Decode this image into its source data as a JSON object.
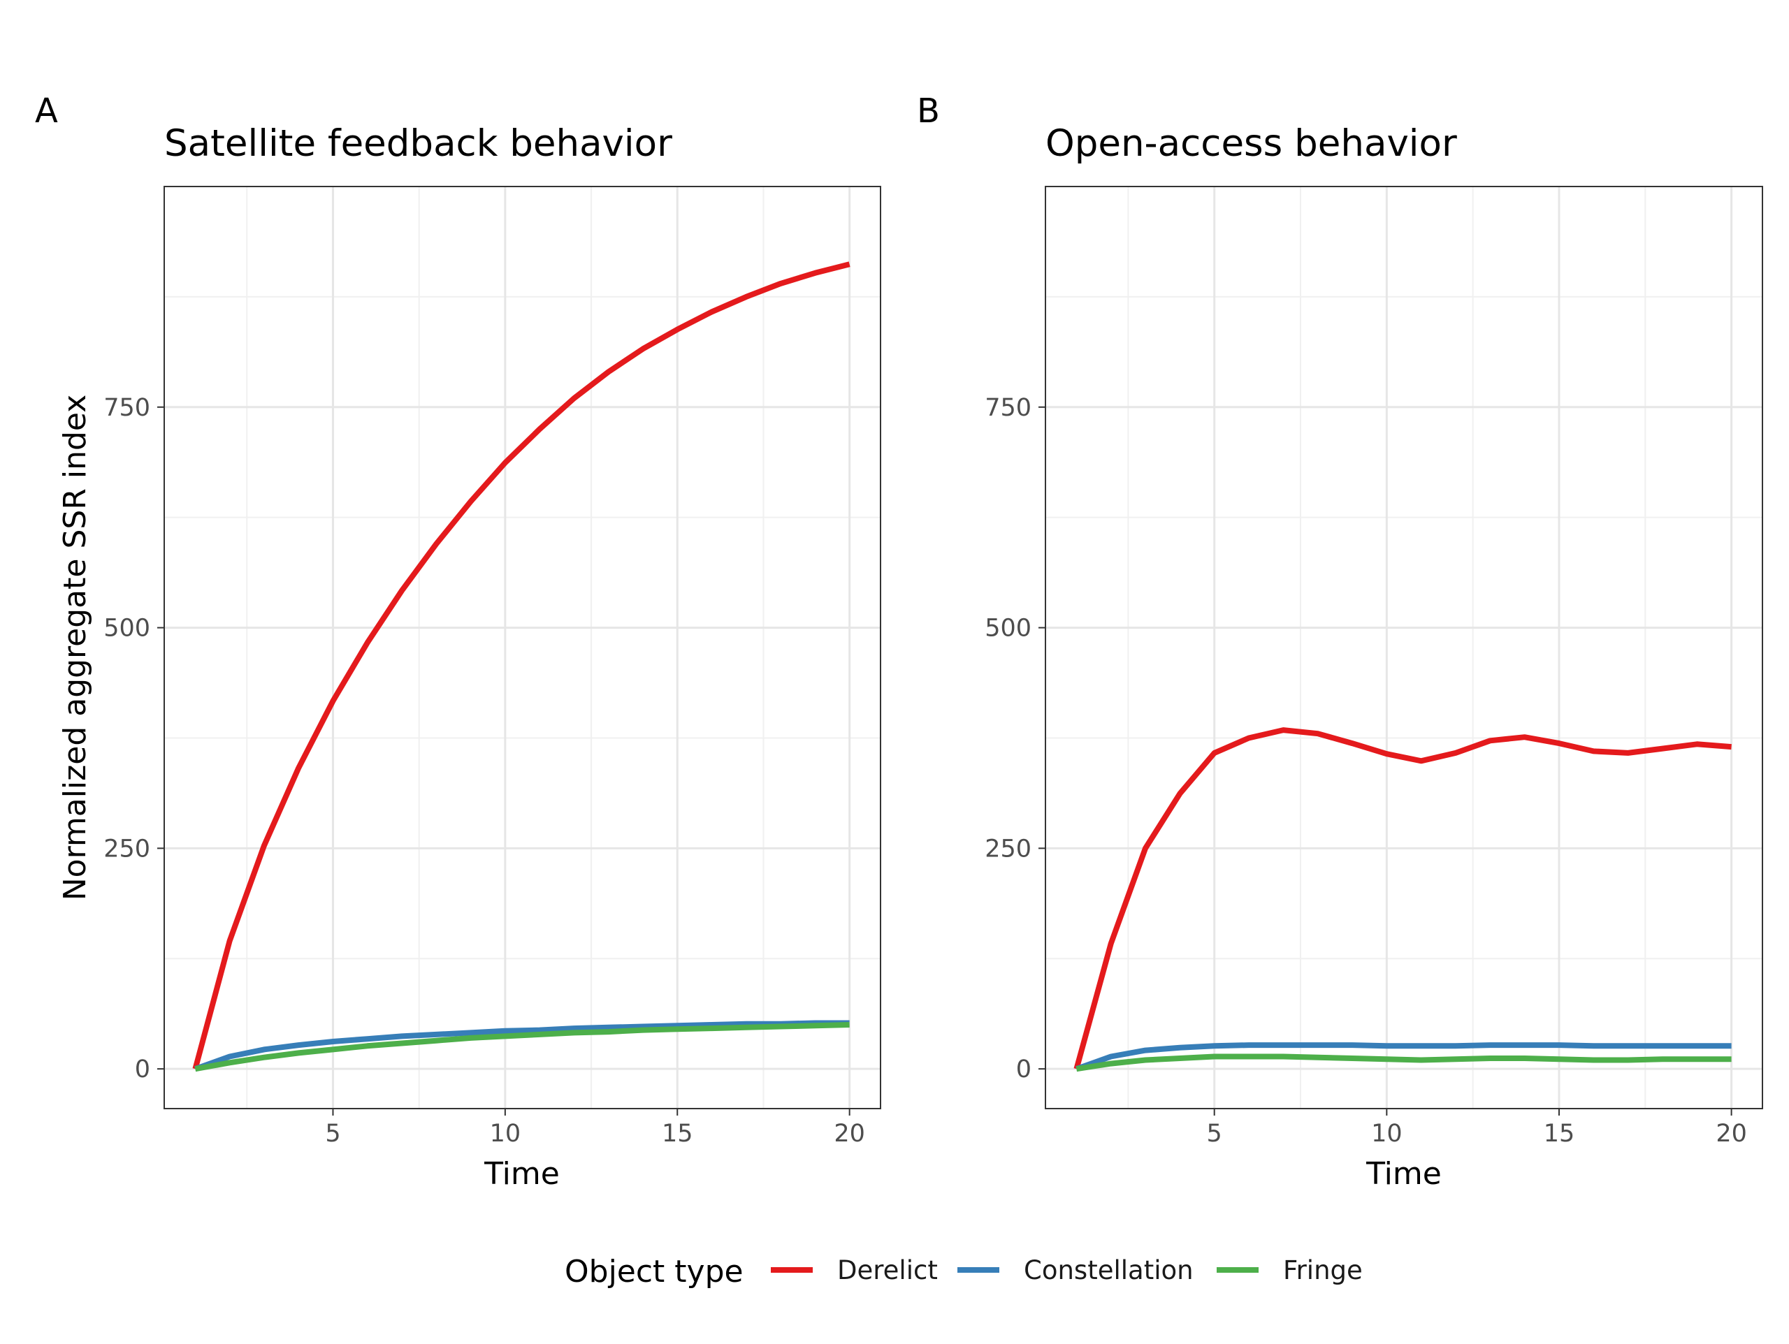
{
  "figure": {
    "legend_title": "Object type"
  },
  "chart_data": [
    {
      "type": "line",
      "panel_label": "A",
      "title": "Satellite feedback behavior",
      "xlabel": "Time",
      "ylabel": "Normalized aggregate SSR index",
      "x": [
        1,
        2,
        3,
        4,
        5,
        6,
        7,
        8,
        9,
        10,
        11,
        12,
        13,
        14,
        15,
        16,
        17,
        18,
        19,
        20
      ],
      "xlim": [
        0.1,
        20.9
      ],
      "ylim": [
        -45,
        1000
      ],
      "xticks": [
        5,
        10,
        15,
        20
      ],
      "yticks": [
        0,
        250,
        500,
        750
      ],
      "xminor": [
        2.5,
        7.5,
        12.5,
        17.5
      ],
      "yminor": [
        125,
        375,
        625,
        875
      ],
      "grid": true,
      "legend_position": "bottom",
      "series": [
        {
          "name": "Derelict",
          "color": "#e41a1c",
          "values": [
            0,
            145,
            253,
            341,
            417,
            483,
            542,
            595,
            643,
            687,
            725,
            760,
            790,
            816,
            838,
            858,
            875,
            890,
            902,
            912
          ]
        },
        {
          "name": "Constellation",
          "color": "#377eb8",
          "values": [
            0,
            14,
            22,
            27,
            31,
            34,
            37,
            39,
            41,
            43,
            44,
            46,
            47,
            48,
            49,
            50,
            51,
            51,
            52,
            52
          ]
        },
        {
          "name": "Fringe",
          "color": "#4daf4a",
          "values": [
            0,
            7,
            13,
            18,
            22,
            26,
            29,
            32,
            35,
            37,
            39,
            41,
            42,
            44,
            45,
            46,
            47,
            48,
            49,
            50
          ]
        }
      ]
    },
    {
      "type": "line",
      "panel_label": "B",
      "title": "Open-access behavior",
      "xlabel": "Time",
      "ylabel": "",
      "x": [
        1,
        2,
        3,
        4,
        5,
        6,
        7,
        8,
        9,
        10,
        11,
        12,
        13,
        14,
        15,
        16,
        17,
        18,
        19,
        20
      ],
      "xlim": [
        0.1,
        20.9
      ],
      "ylim": [
        -45,
        1000
      ],
      "xticks": [
        5,
        10,
        15,
        20
      ],
      "yticks": [
        0,
        250,
        500,
        750
      ],
      "xminor": [
        2.5,
        7.5,
        12.5,
        17.5
      ],
      "yminor": [
        125,
        375,
        625,
        875
      ],
      "grid": true,
      "legend_position": "bottom",
      "series": [
        {
          "name": "Derelict",
          "color": "#e41a1c",
          "values": [
            0,
            142,
            250,
            312,
            358,
            375,
            384,
            380,
            369,
            357,
            349,
            358,
            372,
            376,
            369,
            360,
            358,
            363,
            368,
            365
          ]
        },
        {
          "name": "Constellation",
          "color": "#377eb8",
          "values": [
            0,
            14,
            21,
            24,
            26,
            27,
            27,
            27,
            27,
            26,
            26,
            26,
            27,
            27,
            27,
            26,
            26,
            26,
            26,
            26
          ]
        },
        {
          "name": "Fringe",
          "color": "#4daf4a",
          "values": [
            0,
            6,
            10,
            12,
            14,
            14,
            14,
            13,
            12,
            11,
            10,
            11,
            12,
            12,
            11,
            10,
            10,
            11,
            11,
            11
          ]
        }
      ]
    }
  ],
  "legend": [
    {
      "name": "Derelict",
      "color": "#e41a1c"
    },
    {
      "name": "Constellation",
      "color": "#377eb8"
    },
    {
      "name": "Fringe",
      "color": "#4daf4a"
    }
  ]
}
